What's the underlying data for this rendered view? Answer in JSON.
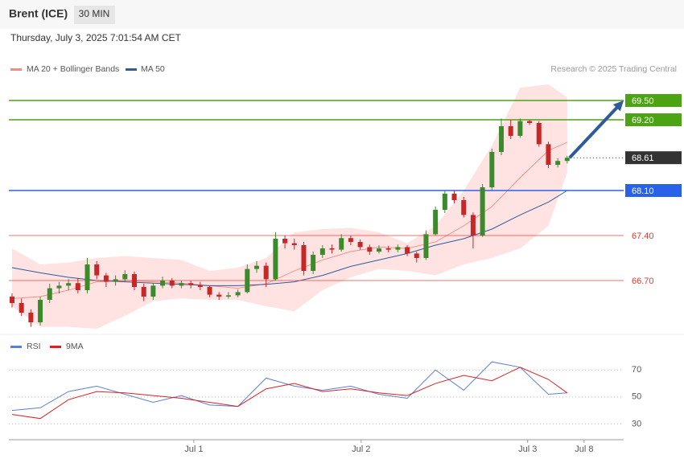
{
  "header": {
    "instrument": "Brent (ICE)",
    "interval": "30 MIN",
    "timestamp": "Thursday, July 3, 2025 7:01:54 AM CET",
    "credit": "Research © 2025 Trading Central"
  },
  "chart_data": [
    {
      "type": "candlestick",
      "ylim": [
        65.875,
        70.5625
      ],
      "xlim": [
        -0.34,
        65
      ],
      "up_color": "#3b8a2c",
      "down_color": "#c62828",
      "candles": [
        [
          66.45,
          66.5,
          66.28,
          66.35
        ],
        [
          66.35,
          66.42,
          66.15,
          66.2
        ],
        [
          66.2,
          66.25,
          65.98,
          66.05
        ],
        [
          66.05,
          66.45,
          66.0,
          66.4
        ],
        [
          66.4,
          66.65,
          66.35,
          66.58
        ],
        [
          66.58,
          66.68,
          66.5,
          66.62
        ],
        [
          66.62,
          66.72,
          66.55,
          66.66
        ],
        [
          66.66,
          66.74,
          66.5,
          66.55
        ],
        [
          66.55,
          67.05,
          66.5,
          66.95
        ],
        [
          66.95,
          67.0,
          66.72,
          66.78
        ],
        [
          66.78,
          66.82,
          66.6,
          66.68
        ],
        [
          66.68,
          66.78,
          66.62,
          66.72
        ],
        [
          66.72,
          66.86,
          66.68,
          66.8
        ],
        [
          66.8,
          66.84,
          66.55,
          66.6
        ],
        [
          66.6,
          66.65,
          66.38,
          66.45
        ],
        [
          66.45,
          66.66,
          66.4,
          66.62
        ],
        [
          66.62,
          66.76,
          66.58,
          66.7
        ],
        [
          66.7,
          66.74,
          66.58,
          66.62
        ],
        [
          66.62,
          66.7,
          66.58,
          66.66
        ],
        [
          66.66,
          66.7,
          66.58,
          66.63
        ],
        [
          66.63,
          66.68,
          66.55,
          66.6
        ],
        [
          66.6,
          66.62,
          66.44,
          66.48
        ],
        [
          66.48,
          66.52,
          66.4,
          66.45
        ],
        [
          66.45,
          66.52,
          66.42,
          66.47
        ],
        [
          66.47,
          66.56,
          66.44,
          66.52
        ],
        [
          66.52,
          66.95,
          66.5,
          66.88
        ],
        [
          66.88,
          67.0,
          66.82,
          66.93
        ],
        [
          66.93,
          66.98,
          66.6,
          66.72
        ],
        [
          66.72,
          67.45,
          66.7,
          67.35
        ],
        [
          67.35,
          67.4,
          67.2,
          67.28
        ],
        [
          67.28,
          67.35,
          67.18,
          67.25
        ],
        [
          67.25,
          67.3,
          66.78,
          66.85
        ],
        [
          66.85,
          67.15,
          66.8,
          67.1
        ],
        [
          67.1,
          67.25,
          67.05,
          67.2
        ],
        [
          67.2,
          67.26,
          67.12,
          67.18
        ],
        [
          67.18,
          67.42,
          67.15,
          67.36
        ],
        [
          67.36,
          67.4,
          67.25,
          67.3
        ],
        [
          67.3,
          67.34,
          67.18,
          67.22
        ],
        [
          67.22,
          67.26,
          67.1,
          67.15
        ],
        [
          67.15,
          67.25,
          67.12,
          67.2
        ],
        [
          67.2,
          67.24,
          67.14,
          67.18
        ],
        [
          67.18,
          67.26,
          67.14,
          67.22
        ],
        [
          67.22,
          67.25,
          67.08,
          67.12
        ],
        [
          67.12,
          67.15,
          66.98,
          67.05
        ],
        [
          67.05,
          67.48,
          67.02,
          67.42
        ],
        [
          67.42,
          67.85,
          67.4,
          67.8
        ],
        [
          67.8,
          68.1,
          67.75,
          68.05
        ],
        [
          68.05,
          68.1,
          67.9,
          67.95
        ],
        [
          67.95,
          68.0,
          67.68,
          67.72
        ],
        [
          67.72,
          67.76,
          67.2,
          67.4
        ],
        [
          67.4,
          68.2,
          67.38,
          68.15
        ],
        [
          68.15,
          68.75,
          68.1,
          68.7
        ],
        [
          68.7,
          69.22,
          68.65,
          69.1
        ],
        [
          69.1,
          69.2,
          68.9,
          68.95
        ],
        [
          68.95,
          69.22,
          68.92,
          69.18
        ],
        [
          69.18,
          69.2,
          69.12,
          69.15
        ],
        [
          69.15,
          69.18,
          68.78,
          68.82
        ],
        [
          68.82,
          68.86,
          68.45,
          68.5
        ],
        [
          68.5,
          68.6,
          68.46,
          68.56
        ],
        [
          68.56,
          68.64,
          68.52,
          68.61
        ]
      ],
      "overlay_x": [
        0,
        3,
        6,
        9,
        12,
        15,
        18,
        21,
        24,
        27,
        30,
        33,
        36,
        39,
        42,
        45,
        48,
        51,
        54,
        57,
        59
      ],
      "bands": {
        "name": "MA 20 + Bollinger Bands",
        "color": "#f28b82",
        "fill": "#ffe3e3",
        "upper": [
          67.2,
          66.95,
          66.98,
          67.05,
          67.08,
          67.05,
          67.02,
          66.85,
          66.9,
          67.05,
          67.45,
          67.5,
          67.52,
          67.45,
          67.28,
          67.55,
          68.1,
          68.8,
          69.7,
          69.75,
          69.55
        ],
        "lower": [
          66.3,
          65.98,
          65.98,
          65.95,
          66.15,
          66.38,
          66.42,
          66.4,
          66.4,
          66.3,
          66.22,
          66.55,
          66.75,
          66.88,
          66.85,
          66.78,
          66.95,
          67.05,
          67.2,
          67.55,
          68.38
        ],
        "values": [
          66.42,
          66.45,
          66.55,
          66.68,
          66.7,
          66.68,
          66.66,
          66.62,
          66.58,
          66.65,
          66.85,
          67.02,
          67.15,
          67.22,
          67.2,
          67.3,
          67.55,
          67.85,
          68.3,
          68.72,
          68.85
        ]
      },
      "series": [
        {
          "name": "MA 50",
          "color": "#2f5b9a",
          "values": [
            66.9,
            66.82,
            66.75,
            66.7,
            66.68,
            66.66,
            66.64,
            66.62,
            66.62,
            66.64,
            66.68,
            66.78,
            66.92,
            67.02,
            67.12,
            67.25,
            67.35,
            67.5,
            67.72,
            67.92,
            68.1
          ]
        }
      ],
      "levels": [
        {
          "value": 69.5,
          "label": "69.50",
          "color": "#4ca313",
          "boxed": true
        },
        {
          "value": 69.2,
          "label": "69.20",
          "color": "#4ca313",
          "boxed": true
        },
        {
          "value": 68.61,
          "color": "#333333",
          "boxed": true,
          "dotted": true
        },
        {
          "value": 68.1,
          "label": "68.10",
          "color": "#2962e8",
          "boxed": true
        },
        {
          "value": 67.4,
          "label": "67.40",
          "color": "#e03a30",
          "boxed": false
        },
        {
          "value": 66.7,
          "label": "66.70",
          "color": "#e03a30",
          "boxed": false
        }
      ],
      "arrow": {
        "from": [
          59,
          68.61
        ],
        "to": [
          65,
          69.5
        ],
        "color": "#2f5b9a"
      },
      "xticks": [
        {
          "value": 19.32,
          "label": "Jul 1"
        },
        {
          "value": 37.1,
          "label": "Jul 2"
        },
        {
          "value": 54.8,
          "label": "Jul 3"
        },
        {
          "value": 60.8,
          "label": "Jul 8"
        }
      ]
    },
    {
      "type": "line",
      "ylim": [
        19.5,
        94
      ],
      "yticks": [
        30,
        50,
        70
      ],
      "x": [
        0,
        3,
        6,
        9,
        12,
        15,
        18,
        21,
        24,
        27,
        30,
        33,
        36,
        39,
        42,
        45,
        48,
        51,
        54,
        57,
        59
      ],
      "series": [
        {
          "name": "RSI",
          "color": "#5b7fd6",
          "values": [
            40,
            42,
            54,
            58,
            52,
            46,
            51,
            44,
            43,
            64,
            58,
            55,
            58,
            52,
            49,
            70,
            55,
            76,
            72,
            52,
            53
          ]
        },
        {
          "name": "9MA",
          "color": "#e02020",
          "values": [
            37,
            34,
            48,
            54,
            53,
            51,
            49,
            46,
            43,
            56,
            60,
            54,
            56,
            53,
            51,
            60,
            66,
            62,
            72,
            63,
            53
          ]
        }
      ]
    }
  ]
}
